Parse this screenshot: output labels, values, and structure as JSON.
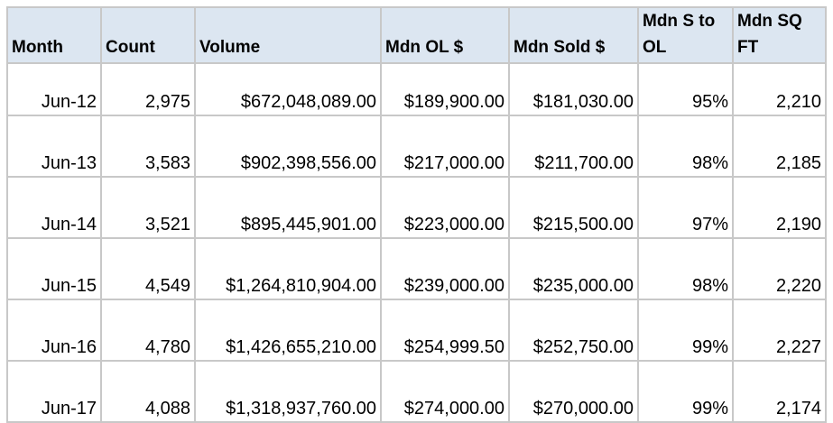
{
  "table": {
    "headers": [
      "Month",
      "Count",
      "Volume",
      "Mdn OL $",
      "Mdn Sold $",
      "Mdn S to OL",
      "Mdn SQ FT"
    ],
    "rows": [
      [
        "Jun-12",
        "2,975",
        "$672,048,089.00",
        "$189,900.00",
        "$181,030.00",
        "95%",
        "2,210"
      ],
      [
        "Jun-13",
        "3,583",
        "$902,398,556.00",
        "$217,000.00",
        "$211,700.00",
        "98%",
        "2,185"
      ],
      [
        "Jun-14",
        "3,521",
        "$895,445,901.00",
        "$223,000.00",
        "$215,500.00",
        "97%",
        "2,190"
      ],
      [
        "Jun-15",
        "4,549",
        "$1,264,810,904.00",
        "$239,000.00",
        "$235,000.00",
        "98%",
        "2,220"
      ],
      [
        "Jun-16",
        "4,780",
        "$1,426,655,210.00",
        "$254,999.50",
        "$252,750.00",
        "99%",
        "2,227"
      ],
      [
        "Jun-17",
        "4,088",
        "$1,318,937,760.00",
        "$274,000.00",
        "$270,000.00",
        "99%",
        "2,174"
      ]
    ]
  },
  "colors": {
    "header_background": "#dce6f1",
    "grid_line": "#c8c8c8"
  }
}
